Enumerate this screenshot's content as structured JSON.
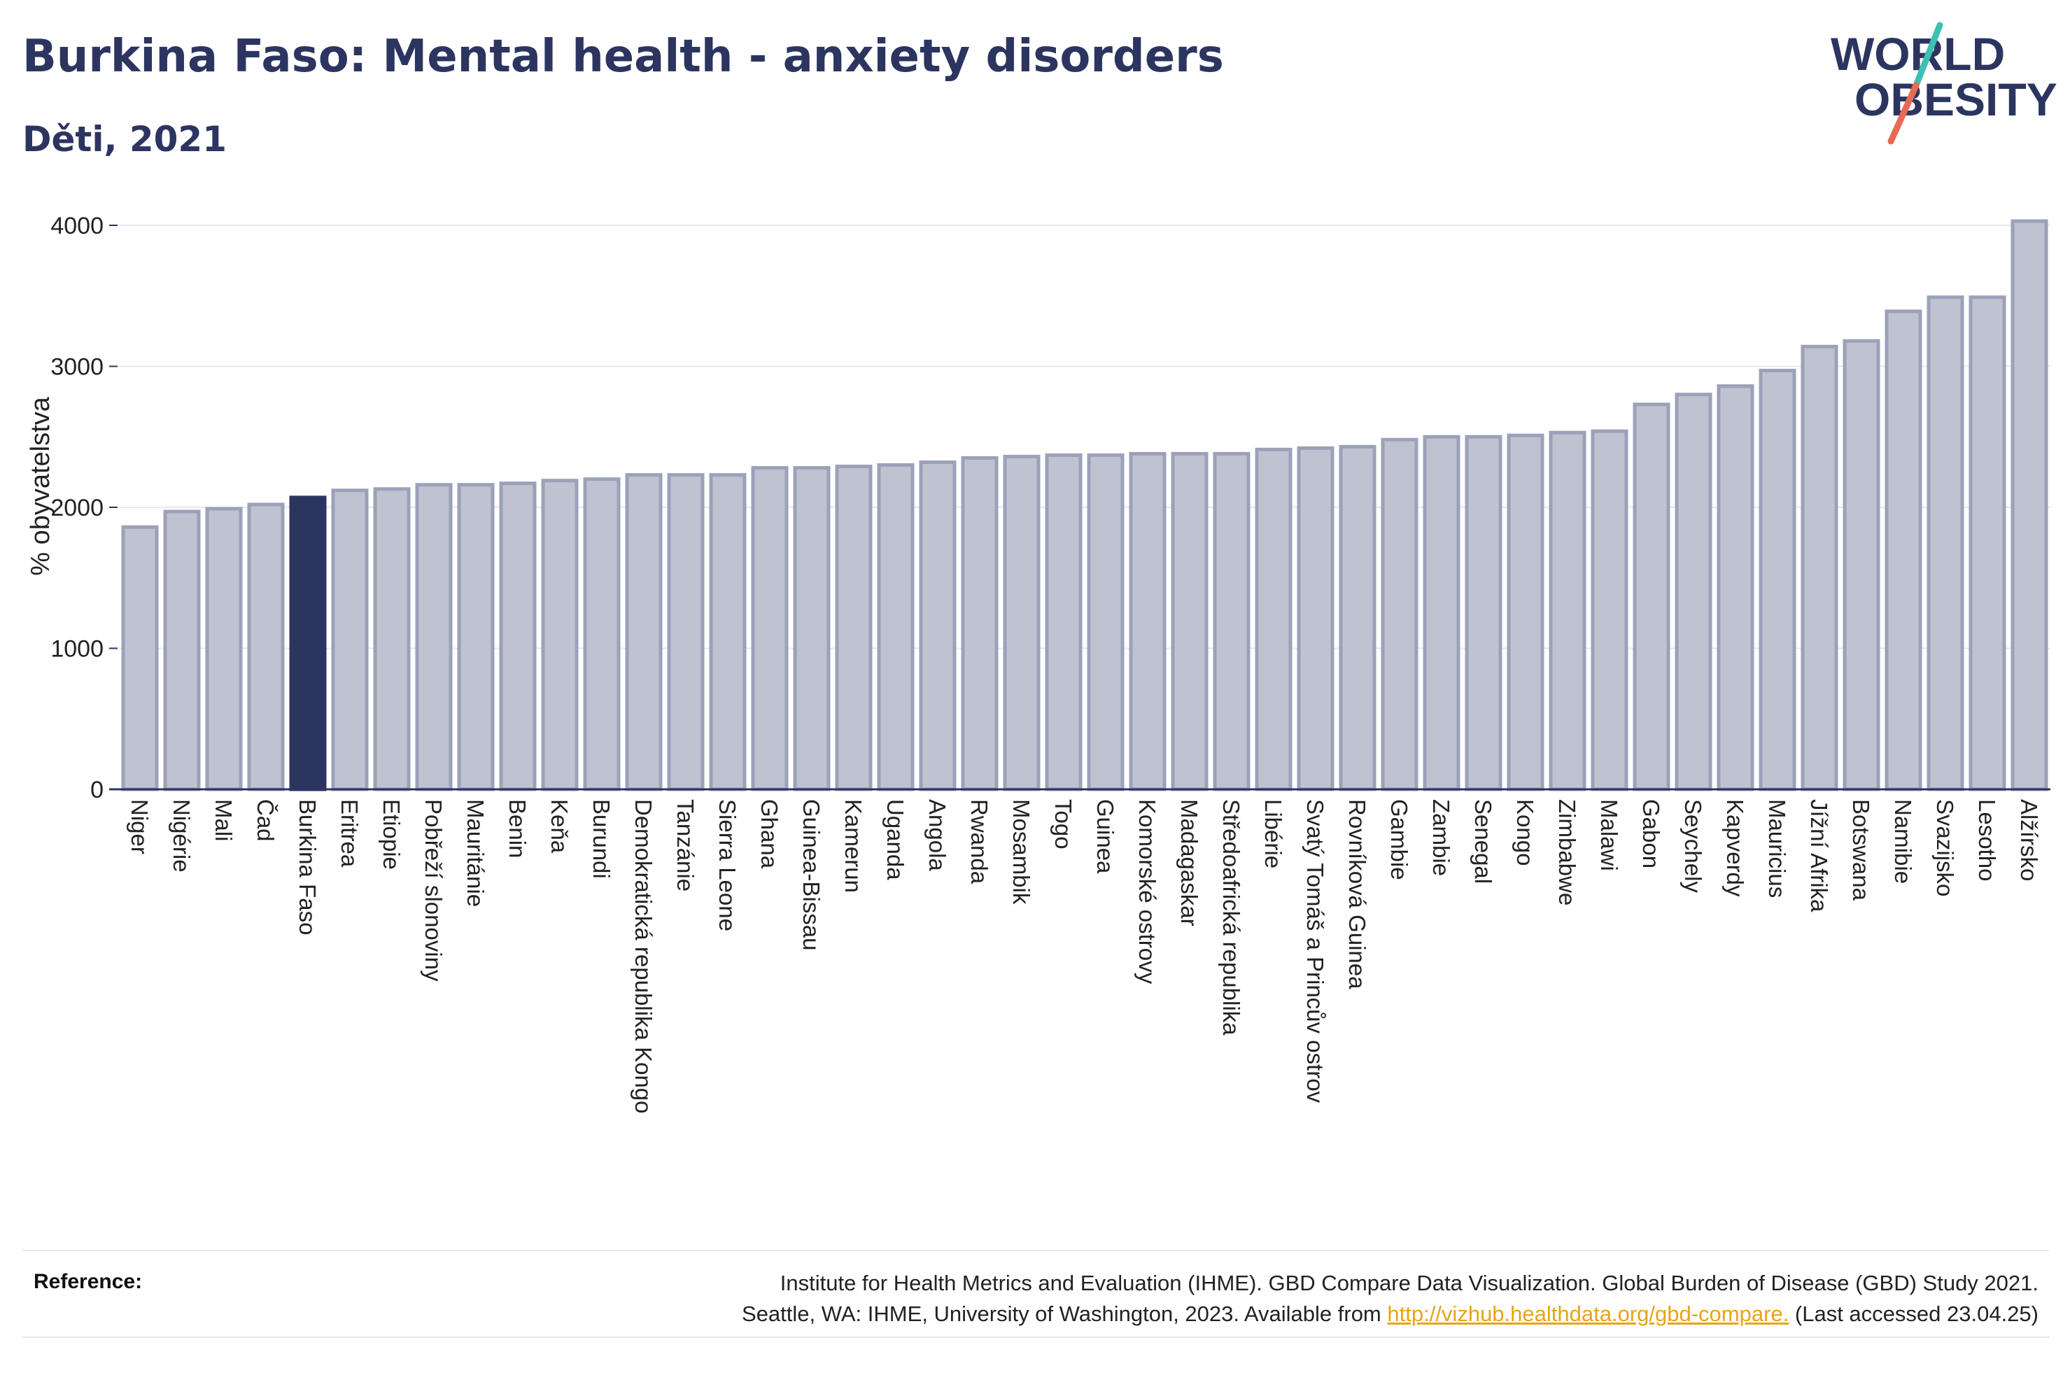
{
  "header": {
    "title": "Burkina Faso: Mental health - anxiety disorders",
    "subtitle": "Děti, 2021"
  },
  "logo": {
    "line1": "WORLD",
    "line2": "OBESITY",
    "colors": {
      "text": "#2c3560",
      "slash_top": "#3cc0b4",
      "slash_bottom": "#e86a54"
    }
  },
  "colors": {
    "bar_fill": "#bfc3d1",
    "bar_stroke": "#9ba1b8",
    "highlight": "#2c3560",
    "axis": "#2c3560",
    "grid": "#e6e8ee"
  },
  "chart_data": {
    "type": "bar",
    "title": "Burkina Faso: Mental health - anxiety disorders",
    "subtitle": "Děti, 2021",
    "ylabel": "% obyvatelstva",
    "xlabel": "",
    "ylim": [
      0,
      4200
    ],
    "yticks": [
      0,
      1000,
      2000,
      3000,
      4000
    ],
    "grid": true,
    "highlight": "Burkina Faso",
    "categories": [
      "Niger",
      "Nigérie",
      "Mali",
      "Čad",
      "Burkina Faso",
      "Eritrea",
      "Etiopie",
      "Pobřeží slonoviny",
      "Mauritánie",
      "Benin",
      "Keňa",
      "Burundi",
      "Demokratická republika Kongo",
      "Tanzánie",
      "Sierra Leone",
      "Ghana",
      "Guinea-Bissau",
      "Kamerun",
      "Uganda",
      "Angola",
      "Rwanda",
      "Mosambik",
      "Togo",
      "Guinea",
      "Komorské ostrovy",
      "Madagaskar",
      "Středoafrická republika",
      "Libérie",
      "Svatý Tomáš a Princův ostrov",
      "Rovníková Guinea",
      "Gambie",
      "Zambie",
      "Senegal",
      "Kongo",
      "Zimbabwe",
      "Malawi",
      "Gabon",
      "Seychely",
      "Kapverdy",
      "Mauricius",
      "Jížní Afrika",
      "Botswana",
      "Namibie",
      "Svazijsko",
      "Lesotho",
      "Alžírsko"
    ],
    "values": [
      1860,
      1970,
      1990,
      2020,
      2070,
      2120,
      2130,
      2160,
      2160,
      2170,
      2190,
      2200,
      2230,
      2230,
      2230,
      2280,
      2280,
      2290,
      2300,
      2320,
      2350,
      2360,
      2370,
      2370,
      2380,
      2380,
      2380,
      2410,
      2420,
      2430,
      2480,
      2500,
      2500,
      2510,
      2530,
      2540,
      2730,
      2800,
      2860,
      2970,
      3140,
      3180,
      3390,
      3490,
      3490,
      4030
    ]
  },
  "reference": {
    "label": "Reference:",
    "line1": "Institute for Health Metrics and Evaluation (IHME). GBD Compare Data Visualization. Global Burden of Disease (GBD) Study 2021.",
    "line2_prefix": "Seattle, WA: IHME, University of Washington, 2023. Available from",
    "link": "http://vizhub.healthdata.org/gbd-compare.",
    "line2_suffix": "(Last accessed 23.04.25)"
  }
}
